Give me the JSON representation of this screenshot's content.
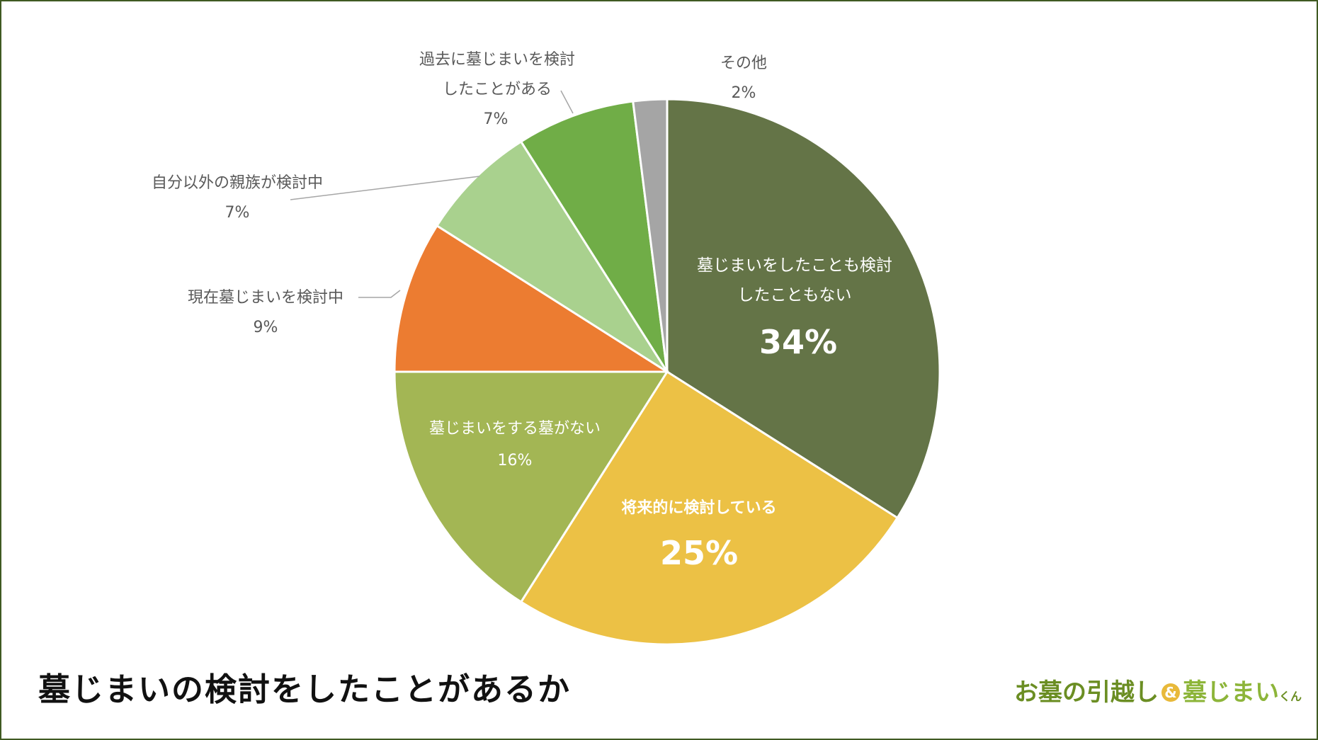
{
  "title": "墓じまいの検討をしたことがあるか",
  "brand": {
    "text_main": "お墓の引越し",
    "text_amp": "&",
    "text_sub": "墓じまい",
    "text_kun": "くん"
  },
  "colors": {
    "border": "#3f5a22",
    "slice_34": "#647447",
    "slice_25": "#ecc145",
    "slice_16": "#a3b654",
    "slice_9": "#ec7c31",
    "slice_7a": "#a9d18e",
    "slice_7b": "#70ad47",
    "slice_2": "#a5a5a5"
  },
  "chart_data": {
    "type": "pie",
    "title": "墓じまいの検討をしたことがあるか",
    "start_angle_deg": 0,
    "direction": "clockwise",
    "slices": [
      {
        "name_lines": [
          "墓じまいをしたことも検討",
          "したこともない"
        ],
        "value": 34,
        "label": "34%",
        "color": "#647447",
        "label_style": "inside-large"
      },
      {
        "name_lines": [
          "将来的に検討している"
        ],
        "value": 25,
        "label": "25%",
        "color": "#ecc145",
        "label_style": "inside-large-bold"
      },
      {
        "name_lines": [
          "墓じまいをする墓がない"
        ],
        "value": 16,
        "label": "16%",
        "color": "#a3b654",
        "label_style": "inside-small"
      },
      {
        "name_lines": [
          "現在墓じまいを検討中"
        ],
        "value": 9,
        "label": "9%",
        "color": "#ec7c31",
        "label_style": "outside"
      },
      {
        "name_lines": [
          "自分以外の親族が検討中"
        ],
        "value": 7,
        "label": "7%",
        "color": "#a9d18e",
        "label_style": "outside"
      },
      {
        "name_lines": [
          "過去に墓じまいを検討",
          "したことがある"
        ],
        "value": 7,
        "label": "7%",
        "color": "#70ad47",
        "label_style": "outside"
      },
      {
        "name_lines": [
          "その他"
        ],
        "value": 2,
        "label": "2%",
        "color": "#a5a5a5",
        "label_style": "outside"
      }
    ]
  }
}
